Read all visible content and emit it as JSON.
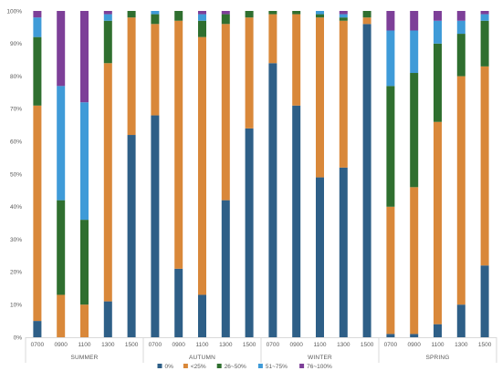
{
  "chart_data": {
    "type": "bar",
    "stacked": true,
    "percent_stacked": true,
    "title": "",
    "xlabel": "",
    "ylabel": "",
    "ylim": [
      0,
      100
    ],
    "y_ticks": [
      "0%",
      "10%",
      "20%",
      "30%",
      "40%",
      "50%",
      "60%",
      "70%",
      "80%",
      "90%",
      "100%"
    ],
    "grid": false,
    "legend_position": "bottom",
    "groups": [
      {
        "name": "SUMMER",
        "categories": [
          "0700",
          "0900",
          "1100",
          "1300",
          "1500"
        ]
      },
      {
        "name": "AUTUMN",
        "categories": [
          "0700",
          "0900",
          "1100",
          "1300",
          "1500"
        ]
      },
      {
        "name": "WINTER",
        "categories": [
          "0700",
          "0900",
          "1100",
          "1300",
          "1500"
        ]
      },
      {
        "name": "SPRING",
        "categories": [
          "0700",
          "0900",
          "1100",
          "1300",
          "1500"
        ]
      }
    ],
    "series": [
      {
        "name": "0%",
        "color": "#2e5f87",
        "values": [
          5,
          0,
          0,
          11,
          62,
          68,
          21,
          13,
          42,
          64,
          84,
          71,
          49,
          52,
          96,
          1,
          1,
          4,
          10,
          22
        ]
      },
      {
        "name": "<25%",
        "color": "#d9883a",
        "values": [
          66,
          13,
          10,
          73,
          36,
          28,
          76,
          79,
          54,
          34,
          15,
          28,
          49,
          45,
          2,
          39,
          45,
          62,
          70,
          61
        ]
      },
      {
        "name": "26~50%",
        "color": "#2f6f2f",
        "values": [
          21,
          29,
          26,
          13,
          2,
          3,
          3,
          5,
          3,
          2,
          1,
          1,
          1,
          1,
          2,
          37,
          35,
          24,
          13,
          14
        ]
      },
      {
        "name": "51~75%",
        "color": "#3f9bd8",
        "values": [
          6,
          35,
          36,
          2,
          0,
          1,
          0,
          2,
          0,
          0,
          0,
          0,
          1,
          1,
          0,
          17,
          13,
          7,
          4,
          2
        ]
      },
      {
        "name": "76~100%",
        "color": "#7d3f98",
        "values": [
          2,
          23,
          28,
          1,
          0,
          0,
          0,
          1,
          1,
          0,
          0,
          0,
          0,
          1,
          0,
          6,
          6,
          3,
          3,
          1
        ]
      }
    ]
  }
}
